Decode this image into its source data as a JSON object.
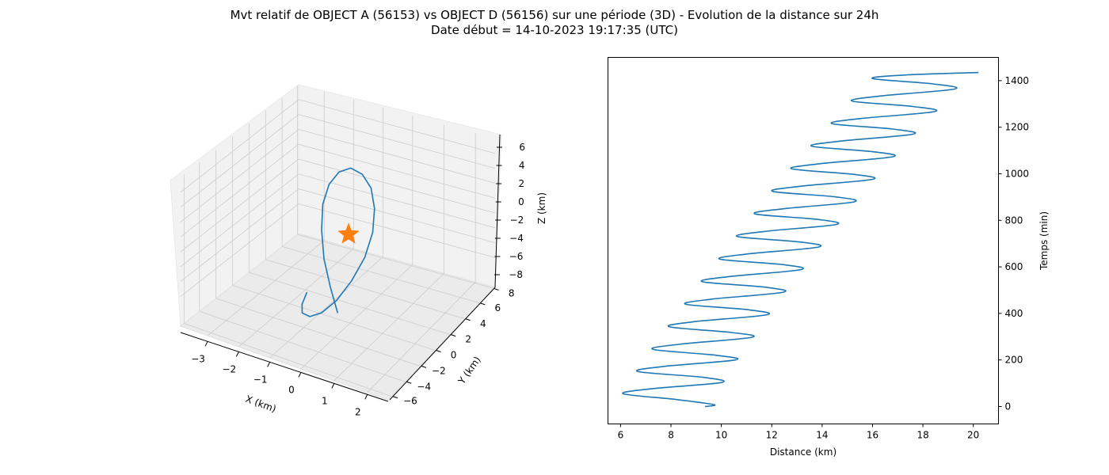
{
  "figure": {
    "title_line1": "Mvt relatif de OBJECT A (56153) vs OBJECT D (56156) sur une période (3D) - Evolution de la distance sur 24h",
    "title_line2": "Date début = 14-10-2023 19:17:35 (UTC)"
  },
  "colors": {
    "trajectory": "#1f77b4",
    "origin_marker": "#ff7f0e",
    "pane": "#f2f2f2",
    "grid": "#cccccc"
  },
  "chart_data": [
    {
      "type": "line",
      "projection": "3d",
      "xlabel": "X (km)",
      "ylabel": "Y (km)",
      "zlabel": "Z (km)",
      "x_ticks": [
        "−3",
        "−2",
        "−1",
        "0",
        "1",
        "2"
      ],
      "y_ticks": [
        "−6",
        "−4",
        "−2",
        "0",
        "2",
        "4",
        "6",
        "8"
      ],
      "z_ticks": [
        "−8",
        "−6",
        "−4",
        "−2",
        "0",
        "2",
        "4",
        "6"
      ],
      "grid": true,
      "series": [
        {
          "x": [
            0.0,
            -0.8,
            -1.5,
            -1.9,
            -2.0,
            -1.7,
            -1.1,
            -0.3,
            0.6,
            1.4,
            1.9,
            2.1,
            1.9,
            1.3,
            0.5,
            -0.4,
            -1.2,
            -1.8,
            -2.0,
            -1.9
          ],
          "y": [
            -1.5,
            1.2,
            3.6,
            5.6,
            7.0,
            7.8,
            8.0,
            7.5,
            6.1,
            4.2,
            1.9,
            -0.6,
            -3.0,
            -4.9,
            -6.0,
            -6.4,
            -6.0,
            -5.0,
            -3.5,
            -1.8
          ],
          "z": [
            -7.5,
            -5.0,
            -2.3,
            0.5,
            3.0,
            5.0,
            6.3,
            6.8,
            6.3,
            5.0,
            3.0,
            0.6,
            -2.0,
            -4.5,
            -6.6,
            -8.0,
            -8.5,
            -8.2,
            -7.3,
            -6.0
          ]
        }
      ],
      "markers": [
        {
          "name": "origin",
          "symbol": "star",
          "x": 0,
          "y": 0,
          "z": 0
        }
      ]
    },
    {
      "type": "line",
      "xlabel": "Distance (km)",
      "ylabel": "Temps (min)",
      "xlim": [
        5.5,
        21.0
      ],
      "ylim": [
        -75,
        1500
      ],
      "x_ticks": [
        6,
        8,
        10,
        12,
        14,
        16,
        18,
        20
      ],
      "y_ticks": [
        0,
        200,
        400,
        600,
        800,
        1000,
        1200,
        1400
      ],
      "y_axis_side": "right",
      "grid": false,
      "oscillation_period_min": 97,
      "series": [
        {
          "x": [
            9.35,
            9.7,
            8.2,
            6.1,
            7.3,
            10.0,
            9.3,
            6.7,
            7.7,
            10.55,
            9.8,
            7.3,
            8.3,
            11.2,
            10.4,
            7.95,
            8.9,
            11.8,
            11.05,
            8.6,
            9.6,
            12.45,
            11.7,
            9.25,
            10.3,
            13.15,
            12.4,
            9.95,
            11.0,
            13.85,
            13.1,
            10.65,
            11.7,
            14.55,
            13.8,
            11.35,
            12.4,
            15.25,
            14.5,
            12.05,
            13.1,
            16.0,
            15.2,
            12.8,
            13.9,
            16.8,
            16.0,
            13.6,
            14.7,
            17.6,
            16.8,
            14.4,
            15.5,
            18.45,
            17.6,
            15.2,
            16.3,
            19.25,
            18.4,
            16.0,
            17.4,
            20.2
          ],
          "y": [
            0,
            8,
            30,
            55,
            77,
            103,
            125,
            150,
            172,
            200,
            220,
            245,
            267,
            297,
            318,
            342,
            364,
            394,
            416,
            439,
            461,
            491,
            513,
            536,
            558,
            588,
            610,
            633,
            655,
            685,
            707,
            730,
            752,
            782,
            804,
            827,
            849,
            879,
            901,
            924,
            946,
            976,
            998,
            1021,
            1043,
            1073,
            1095,
            1118,
            1140,
            1170,
            1192,
            1215,
            1237,
            1267,
            1289,
            1312,
            1334,
            1364,
            1386,
            1409,
            1425,
            1435
          ]
        }
      ]
    }
  ]
}
